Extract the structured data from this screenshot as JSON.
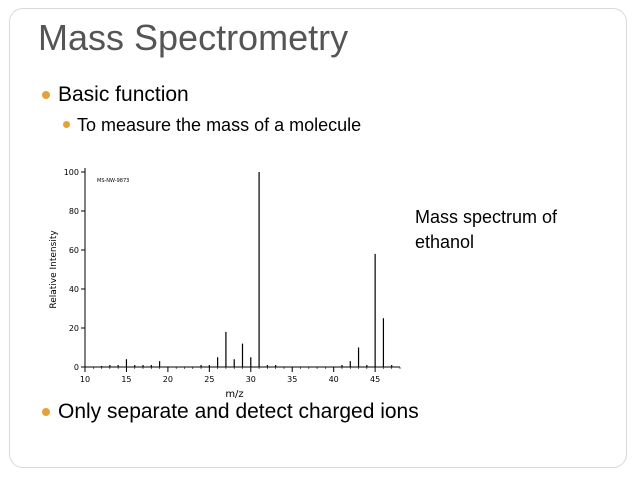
{
  "slide": {
    "title": "Mass Spectrometry",
    "bullets": [
      {
        "text": "Basic function"
      },
      {
        "text": "To measure the mass of a molecule"
      },
      {
        "text": "Only separate and detect charged ions"
      }
    ],
    "caption": "Mass spectrum of ethanol",
    "bullet_color": "#e4a33a",
    "title_color": "#555555"
  },
  "chart_data": {
    "type": "bar",
    "title": "",
    "inset_label": "MS-NW-9873",
    "xlabel": "m/z",
    "ylabel": "Relative Intensity",
    "xlim": [
      10,
      48
    ],
    "ylim": [
      0,
      100
    ],
    "x_ticks": [
      10,
      15,
      20,
      25,
      30,
      35,
      40,
      45
    ],
    "y_ticks": [
      0,
      20,
      40,
      60,
      80,
      100
    ],
    "peaks": [
      {
        "mz": 12,
        "intensity": 0.5
      },
      {
        "mz": 13,
        "intensity": 1
      },
      {
        "mz": 14,
        "intensity": 1
      },
      {
        "mz": 15,
        "intensity": 4
      },
      {
        "mz": 16,
        "intensity": 1
      },
      {
        "mz": 17,
        "intensity": 1
      },
      {
        "mz": 18,
        "intensity": 1
      },
      {
        "mz": 19,
        "intensity": 3
      },
      {
        "mz": 24,
        "intensity": 1
      },
      {
        "mz": 25,
        "intensity": 1
      },
      {
        "mz": 26,
        "intensity": 5
      },
      {
        "mz": 27,
        "intensity": 18
      },
      {
        "mz": 28,
        "intensity": 4
      },
      {
        "mz": 29,
        "intensity": 12
      },
      {
        "mz": 30,
        "intensity": 5
      },
      {
        "mz": 31,
        "intensity": 100
      },
      {
        "mz": 32,
        "intensity": 1
      },
      {
        "mz": 33,
        "intensity": 1
      },
      {
        "mz": 41,
        "intensity": 1
      },
      {
        "mz": 42,
        "intensity": 3
      },
      {
        "mz": 43,
        "intensity": 10
      },
      {
        "mz": 44,
        "intensity": 1
      },
      {
        "mz": 45,
        "intensity": 58
      },
      {
        "mz": 46,
        "intensity": 25
      },
      {
        "mz": 47,
        "intensity": 1
      }
    ]
  }
}
